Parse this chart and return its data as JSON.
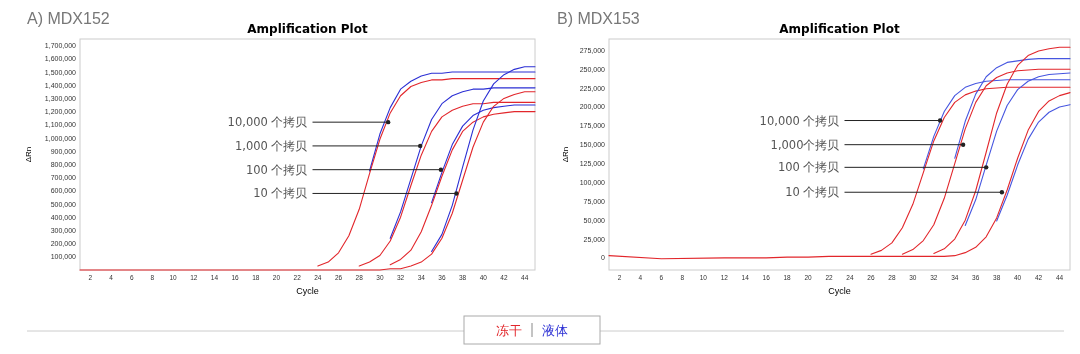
{
  "chart_data": [
    {
      "type": "line",
      "subtitle": "A) MDX152",
      "title": "Amplification Plot",
      "xlabel": "Cycle",
      "ylabel": "ΔRn",
      "legend": "bottom",
      "xlim": [
        1,
        45
      ],
      "xticks": [
        2,
        4,
        6,
        8,
        10,
        12,
        14,
        16,
        18,
        20,
        22,
        24,
        26,
        28,
        30,
        32,
        34,
        36,
        38,
        40,
        42,
        44
      ],
      "ylim": [
        0,
        1750000
      ],
      "yticks": [
        {
          "value": 100000,
          "label": "100,000"
        },
        {
          "value": 200000,
          "label": "200,000"
        },
        {
          "value": 300000,
          "label": "300,000"
        },
        {
          "value": 400000,
          "label": "400,000"
        },
        {
          "value": 500000,
          "label": "500,000"
        },
        {
          "value": 600000,
          "label": "600,000"
        },
        {
          "value": 700000,
          "label": "700,000"
        },
        {
          "value": 800000,
          "label": "800,000"
        },
        {
          "value": 900000,
          "label": "900,000"
        },
        {
          "value": 1000000,
          "label": "1,000,000"
        },
        {
          "value": 1100000,
          "label": "1,100,000"
        },
        {
          "value": 1200000,
          "label": "1,200,000"
        },
        {
          "value": 1300000,
          "label": "1,300,000"
        },
        {
          "value": 1400000,
          "label": "1,400,000"
        },
        {
          "value": 1500000,
          "label": "1,500,000"
        },
        {
          "value": 1600000,
          "label": "1,600,000"
        },
        {
          "value": 1700000,
          "label": "1,700,000"
        }
      ],
      "x": [
        1,
        6,
        12,
        16,
        18,
        20,
        22,
        23,
        24,
        25,
        26,
        27,
        28,
        29,
        30,
        31,
        32,
        33,
        34,
        35,
        36,
        37,
        38,
        39,
        40,
        41,
        42,
        43,
        44,
        45
      ],
      "series": [
        {
          "name": "液体",
          "color": "#2b2fd4",
          "values": [
            null,
            null,
            null,
            null,
            null,
            null,
            null,
            null,
            null,
            null,
            null,
            null,
            null,
            750000,
            1030000,
            1230000,
            1370000,
            1430000,
            1470000,
            1490000,
            1490000,
            1500000,
            1500000,
            1500000,
            1500000,
            1500000,
            1500000,
            1500000,
            1500000,
            1500000
          ]
        },
        {
          "name": "冻干",
          "color": "#e2262b",
          "values": [
            null,
            null,
            null,
            null,
            null,
            null,
            null,
            null,
            30000,
            60000,
            130000,
            260000,
            460000,
            730000,
            990000,
            1190000,
            1320000,
            1390000,
            1420000,
            1440000,
            1440000,
            1450000,
            1450000,
            1450000,
            1450000,
            1450000,
            1450000,
            1450000,
            1450000,
            1450000
          ]
        },
        {
          "color": "#2b2fd4",
          "values": [
            null,
            null,
            null,
            null,
            null,
            null,
            null,
            null,
            null,
            null,
            null,
            null,
            null,
            null,
            null,
            240000,
            440000,
            690000,
            940000,
            1140000,
            1260000,
            1320000,
            1350000,
            1370000,
            1370000,
            1380000,
            1380000,
            1380000,
            1380000,
            1380000
          ]
        },
        {
          "color": "#e2262b",
          "values": [
            null,
            null,
            null,
            null,
            null,
            null,
            null,
            null,
            null,
            null,
            null,
            null,
            30000,
            60000,
            110000,
            220000,
            400000,
            640000,
            870000,
            1050000,
            1160000,
            1210000,
            1240000,
            1260000,
            1260000,
            1270000,
            1270000,
            1270000,
            1270000,
            1270000
          ]
        },
        {
          "color": "#2b2fd4",
          "values": [
            null,
            null,
            null,
            null,
            null,
            null,
            null,
            null,
            null,
            null,
            null,
            null,
            null,
            null,
            null,
            null,
            null,
            null,
            null,
            510000,
            740000,
            950000,
            1090000,
            1170000,
            1210000,
            1230000,
            1240000,
            1250000,
            1250000,
            1250000
          ]
        },
        {
          "color": "#e2262b",
          "values": [
            null,
            null,
            null,
            null,
            null,
            null,
            null,
            null,
            null,
            null,
            null,
            null,
            null,
            null,
            null,
            40000,
            80000,
            150000,
            290000,
            490000,
            710000,
            910000,
            1050000,
            1120000,
            1160000,
            1180000,
            1190000,
            1200000,
            1200000,
            1200000
          ]
        },
        {
          "color": "#2b2fd4",
          "values": [
            null,
            null,
            null,
            null,
            null,
            null,
            null,
            null,
            null,
            null,
            null,
            null,
            null,
            null,
            null,
            null,
            null,
            null,
            null,
            140000,
            270000,
            490000,
            780000,
            1060000,
            1280000,
            1410000,
            1480000,
            1520000,
            1540000,
            1540000
          ]
        },
        {
          "color": "#e2262b",
          "values": [
            0,
            0,
            0,
            0,
            0,
            0,
            0,
            0,
            0,
            0,
            0,
            0,
            0,
            0,
            0,
            10000,
            10000,
            30000,
            60000,
            120000,
            240000,
            430000,
            680000,
            930000,
            1120000,
            1240000,
            1300000,
            1330000,
            1350000,
            1350000
          ]
        }
      ],
      "annotations": [
        {
          "text": "10,000 个拷贝",
          "x": 30.8,
          "y": 1120000
        },
        {
          "text": "1,000 个拷贝",
          "x": 33.9,
          "y": 940000
        },
        {
          "text": "100 个拷贝",
          "x": 35.9,
          "y": 760000
        },
        {
          "text": "10 个拷贝",
          "x": 37.4,
          "y": 580000
        }
      ]
    },
    {
      "type": "line",
      "subtitle": "B) MDX153",
      "title": "Amplification Plot",
      "xlabel": "Cycle",
      "ylabel": "ΔRn",
      "xlim": [
        1,
        45
      ],
      "xticks": [
        2,
        4,
        6,
        8,
        10,
        12,
        14,
        16,
        18,
        20,
        22,
        24,
        26,
        28,
        30,
        32,
        34,
        36,
        38,
        40,
        42,
        44
      ],
      "ylim": [
        -16000,
        290000
      ],
      "yticks": [
        0,
        {
          "value": 25000,
          "label": "25,000"
        },
        {
          "value": 50000,
          "label": "50,000"
        },
        {
          "value": 75000,
          "label": "75,000"
        },
        {
          "value": 100000,
          "label": "100,000"
        },
        {
          "value": 125000,
          "label": "125,000"
        },
        {
          "value": 150000,
          "label": "150,000"
        },
        {
          "value": 175000,
          "label": "175,000"
        },
        {
          "value": 200000,
          "label": "200,000"
        },
        {
          "value": 225000,
          "label": "225,000"
        },
        {
          "value": 250000,
          "label": "250,000"
        },
        {
          "value": 275000,
          "label": "275,000"
        }
      ],
      "x": [
        1,
        6,
        12,
        16,
        18,
        20,
        22,
        23,
        24,
        25,
        26,
        27,
        28,
        29,
        30,
        31,
        32,
        33,
        34,
        35,
        36,
        37,
        38,
        39,
        40,
        41,
        42,
        43,
        44,
        45
      ],
      "series": [
        {
          "color": "#4656e0",
          "values": [
            null,
            null,
            null,
            null,
            null,
            null,
            null,
            null,
            null,
            null,
            null,
            null,
            null,
            null,
            null,
            118000,
            161000,
            194000,
            215000,
            226000,
            231000,
            234000,
            235000,
            236000,
            236000,
            236000,
            236000,
            236000,
            236000,
            236000
          ]
        },
        {
          "color": "#e2262b",
          "values": [
            null,
            null,
            null,
            null,
            null,
            null,
            null,
            null,
            null,
            null,
            5000,
            10000,
            20000,
            40000,
            71000,
            113000,
            155000,
            186000,
            206000,
            216000,
            221000,
            224000,
            225000,
            226000,
            226000,
            226000,
            226000,
            226000,
            226000,
            226000
          ]
        },
        {
          "color": "#4656e0",
          "values": [
            null,
            null,
            null,
            null,
            null,
            null,
            null,
            null,
            null,
            null,
            null,
            null,
            null,
            null,
            null,
            null,
            null,
            null,
            132000,
            181000,
            217000,
            240000,
            252000,
            259000,
            261000,
            263000,
            264000,
            264000,
            264000,
            264000
          ]
        },
        {
          "color": "#e2262b",
          "values": [
            null,
            null,
            null,
            null,
            null,
            null,
            null,
            null,
            null,
            null,
            null,
            null,
            null,
            5000,
            11000,
            23000,
            44000,
            79000,
            125000,
            171000,
            206000,
            228000,
            239000,
            245000,
            248000,
            249000,
            250000,
            250000,
            250000,
            250000
          ]
        },
        {
          "color": "#4656e0",
          "values": [
            null,
            null,
            null,
            null,
            null,
            null,
            null,
            null,
            null,
            null,
            null,
            null,
            null,
            null,
            null,
            null,
            null,
            null,
            null,
            43000,
            77000,
            123000,
            168000,
            202000,
            223000,
            234000,
            240000,
            243000,
            244000,
            245000
          ]
        },
        {
          "color": "#e2262b",
          "values": [
            null,
            null,
            null,
            null,
            null,
            null,
            null,
            null,
            null,
            null,
            null,
            null,
            null,
            null,
            null,
            null,
            6000,
            12000,
            25000,
            50000,
            89000,
            140000,
            192000,
            230000,
            255000,
            268000,
            274000,
            277000,
            279000,
            279000
          ]
        },
        {
          "color": "#4656e0",
          "values": [
            null,
            null,
            null,
            null,
            null,
            null,
            null,
            null,
            null,
            null,
            null,
            null,
            null,
            null,
            null,
            null,
            null,
            null,
            null,
            null,
            null,
            null,
            49000,
            83000,
            123000,
            157000,
            180000,
            193000,
            200000,
            203000
          ]
        },
        {
          "color": "#e2262b",
          "values": [
            3000,
            -1000,
            0,
            0,
            1000,
            1000,
            2000,
            2000,
            2000,
            2000,
            2000,
            2000,
            2000,
            2000,
            2000,
            2000,
            2000,
            2000,
            3000,
            7000,
            14000,
            28000,
            53000,
            90000,
            132000,
            169000,
            194000,
            208000,
            215000,
            219000
          ]
        }
      ],
      "annotations": [
        {
          "text": "10,000 个拷贝",
          "x": 32.6,
          "y": 182000
        },
        {
          "text": "1,000个拷贝",
          "x": 34.8,
          "y": 150000
        },
        {
          "text": "100 个拷贝",
          "x": 37,
          "y": 120000
        },
        {
          "text": "10 个拷贝",
          "x": 38.5,
          "y": 87000
        }
      ]
    }
  ]
}
